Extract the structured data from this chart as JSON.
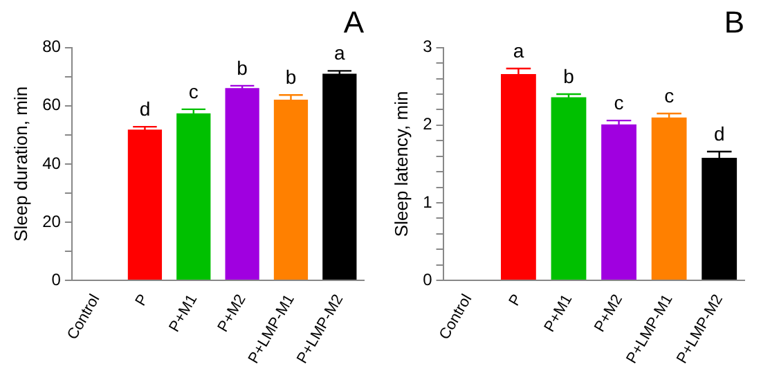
{
  "chart_data": [
    {
      "type": "bar",
      "title": "A",
      "ylabel": "Sleep duration, min",
      "categories": [
        "Control",
        "P",
        "P+M1",
        "P+M2",
        "P+LMP-M1",
        "P+LMP-M2"
      ],
      "values": [
        null,
        51.8,
        57.4,
        66.1,
        62.1,
        71.0
      ],
      "errors": [
        null,
        1.0,
        1.4,
        0.8,
        1.6,
        1.0
      ],
      "colors": [
        "#ff0000",
        "#ff0000",
        "#00c000",
        "#a000e0",
        "#ff8000",
        "#000000"
      ],
      "ylim": [
        0,
        80
      ],
      "yticks": [
        0,
        {
          "value": 10,
          "label": null
        },
        20,
        {
          "value": 30,
          "label": null
        },
        40,
        {
          "value": 50,
          "label": null
        },
        60,
        {
          "value": 70,
          "label": null
        },
        80
      ],
      "annotations": [
        {
          "text": "d",
          "x": "P",
          "y": 52.8
        },
        {
          "text": "c",
          "x": "P+M1",
          "y": 58.8
        },
        {
          "text": "b",
          "x": "P+M2",
          "y": 66.9
        },
        {
          "text": "b",
          "x": "P+LMP-M1",
          "y": 63.7
        },
        {
          "text": "a",
          "x": "P+LMP-M2",
          "y": 72.0
        }
      ],
      "grid": false,
      "legend": false
    },
    {
      "type": "bar",
      "title": "B",
      "ylabel": "Sleep latency, min",
      "categories": [
        "Control",
        "P",
        "P+M1",
        "P+M2",
        "P+LMP-M1",
        "P+LMP-M2"
      ],
      "values": [
        null,
        2.66,
        2.36,
        2.01,
        2.1,
        1.58
      ],
      "errors": [
        null,
        0.07,
        0.04,
        0.05,
        0.05,
        0.08
      ],
      "colors": [
        "#ff0000",
        "#ff0000",
        "#00c000",
        "#a000e0",
        "#ff8000",
        "#000000"
      ],
      "ylim": [
        0,
        3
      ],
      "yticks": [
        0,
        {
          "value": 0.2,
          "label": null
        },
        {
          "value": 0.4,
          "label": null
        },
        {
          "value": 0.6,
          "label": null
        },
        {
          "value": 0.8,
          "label": null
        },
        1,
        {
          "value": 1.2,
          "label": null
        },
        {
          "value": 1.4,
          "label": null
        },
        {
          "value": 1.6,
          "label": null
        },
        {
          "value": 1.8,
          "label": null
        },
        2,
        {
          "value": 2.2,
          "label": null
        },
        {
          "value": 2.4,
          "label": null
        },
        {
          "value": 2.6,
          "label": null
        },
        {
          "value": 2.8,
          "label": null
        },
        3
      ],
      "annotations": [
        {
          "text": "a",
          "x": "P",
          "y": 2.73
        },
        {
          "text": "b",
          "x": "P+M1",
          "y": 2.4
        },
        {
          "text": "c",
          "x": "P+M2",
          "y": 2.06
        },
        {
          "text": "c",
          "x": "P+LMP-M1",
          "y": 2.15
        },
        {
          "text": "d",
          "x": "P+LMP-M2",
          "y": 1.66
        }
      ],
      "grid": false,
      "legend": false
    }
  ]
}
